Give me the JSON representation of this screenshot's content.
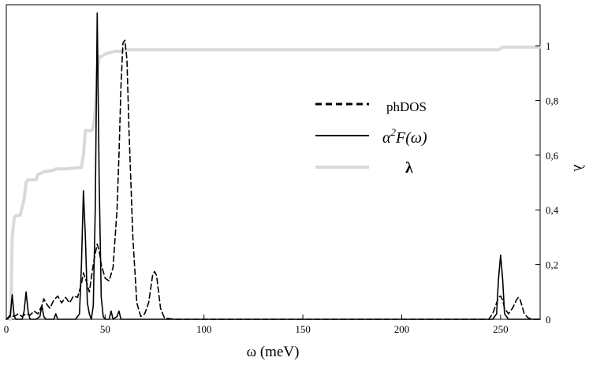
{
  "chart_data": {
    "type": "line",
    "title": "",
    "xlabel": "ω (meV)",
    "ylabel_right": "λ",
    "xlim": [
      0,
      270
    ],
    "xticks": [
      0,
      50,
      100,
      150,
      200,
      250
    ],
    "xtick_labels": [
      "0",
      "50",
      "100",
      "150",
      "200",
      "250"
    ],
    "ylim_right": [
      0,
      1.15
    ],
    "yticks_right": [
      0,
      0.2,
      0.4,
      0.6,
      0.8,
      1
    ],
    "ytick_labels_right": [
      "0",
      "0,2",
      "0,4",
      "0,6",
      "0,8",
      "1"
    ],
    "grid": false,
    "legend_position": "center-right",
    "legend": [
      {
        "label": "phDOS",
        "style": "dashed",
        "color": "#000000"
      },
      {
        "label_base": "α",
        "label_sup": "2",
        "label_rest": "F(ω)",
        "style": "solid",
        "color": "#000000"
      },
      {
        "label": "λ",
        "style": "solid",
        "color": "#d9d9d9"
      }
    ],
    "series": [
      {
        "name": "phDOS",
        "style": "dashed",
        "color": "#000000",
        "x": [
          0,
          2,
          4,
          6,
          8,
          10,
          12,
          14,
          16,
          18,
          19,
          20,
          22,
          24,
          26,
          28,
          30,
          32,
          34,
          36,
          38,
          39,
          40,
          42,
          44,
          45,
          46,
          47,
          48,
          50,
          52,
          54,
          56,
          57,
          58,
          59,
          60,
          61,
          62,
          64,
          66,
          68,
          70,
          72,
          73,
          74,
          75,
          76,
          77,
          78,
          80,
          85,
          100,
          150,
          200,
          240,
          244,
          246,
          248,
          249,
          250,
          251,
          252,
          254,
          256,
          258,
          259,
          260,
          262,
          264,
          266,
          270
        ],
        "y": [
          0,
          0.015,
          0.01,
          0.02,
          0.01,
          0.02,
          0.015,
          0.03,
          0.02,
          0.05,
          0.075,
          0.06,
          0.04,
          0.07,
          0.085,
          0.06,
          0.08,
          0.06,
          0.085,
          0.08,
          0.13,
          0.17,
          0.15,
          0.1,
          0.2,
          0.24,
          0.275,
          0.25,
          0.2,
          0.15,
          0.14,
          0.19,
          0.4,
          0.6,
          0.85,
          1.01,
          1.02,
          0.95,
          0.7,
          0.3,
          0.06,
          0.01,
          0.02,
          0.06,
          0.11,
          0.16,
          0.175,
          0.16,
          0.1,
          0.04,
          0.005,
          0,
          0,
          0,
          0,
          0,
          0,
          0.02,
          0.06,
          0.08,
          0.085,
          0.07,
          0.04,
          0.02,
          0.04,
          0.07,
          0.08,
          0.07,
          0.02,
          0.005,
          0,
          0
        ]
      },
      {
        "name": "α²F(ω)",
        "style": "solid",
        "color": "#000000",
        "x": [
          0,
          2,
          3,
          4,
          5,
          6,
          8,
          9,
          10,
          11,
          12,
          13,
          15,
          17,
          18,
          19,
          20,
          24,
          25,
          26,
          28,
          35,
          37,
          38,
          39,
          40,
          41,
          42,
          43,
          44,
          45,
          46,
          47,
          48,
          49,
          50,
          52,
          53,
          54,
          56,
          57,
          58,
          60,
          70,
          100,
          200,
          246,
          248,
          249,
          250,
          251,
          252,
          254,
          270
        ],
        "y": [
          0,
          0.01,
          0.09,
          0.01,
          0,
          0,
          0,
          0.03,
          0.1,
          0.03,
          0,
          0,
          0,
          0.01,
          0.05,
          0.01,
          0,
          0,
          0.02,
          0,
          0,
          0,
          0.02,
          0.2,
          0.47,
          0.3,
          0.06,
          0.02,
          0,
          0.05,
          0.4,
          1.12,
          0.5,
          0.08,
          0.01,
          0,
          0,
          0.03,
          0,
          0.01,
          0.03,
          0,
          0,
          0,
          0,
          0,
          0,
          0.02,
          0.15,
          0.235,
          0.15,
          0.02,
          0,
          0
        ]
      },
      {
        "name": "λ",
        "style": "solid",
        "color": "#d9d9d9",
        "x": [
          2,
          2.5,
          3,
          4,
          5,
          7,
          8,
          9,
          10,
          11,
          12,
          15,
          16,
          18,
          19,
          20,
          24,
          25,
          27,
          30,
          38,
          39,
          40,
          43,
          44,
          45,
          46,
          47,
          48,
          50,
          55,
          58,
          60,
          80,
          150,
          249,
          250,
          251,
          252,
          270
        ],
        "y": [
          0,
          0.1,
          0.3,
          0.37,
          0.38,
          0.38,
          0.41,
          0.44,
          0.5,
          0.51,
          0.51,
          0.51,
          0.53,
          0.535,
          0.54,
          0.54,
          0.545,
          0.55,
          0.55,
          0.55,
          0.555,
          0.6,
          0.69,
          0.69,
          0.7,
          0.76,
          0.9,
          0.96,
          0.96,
          0.97,
          0.98,
          0.98,
          0.985,
          0.985,
          0.985,
          0.985,
          0.99,
          0.995,
          0.995,
          0.995
        ]
      }
    ]
  }
}
